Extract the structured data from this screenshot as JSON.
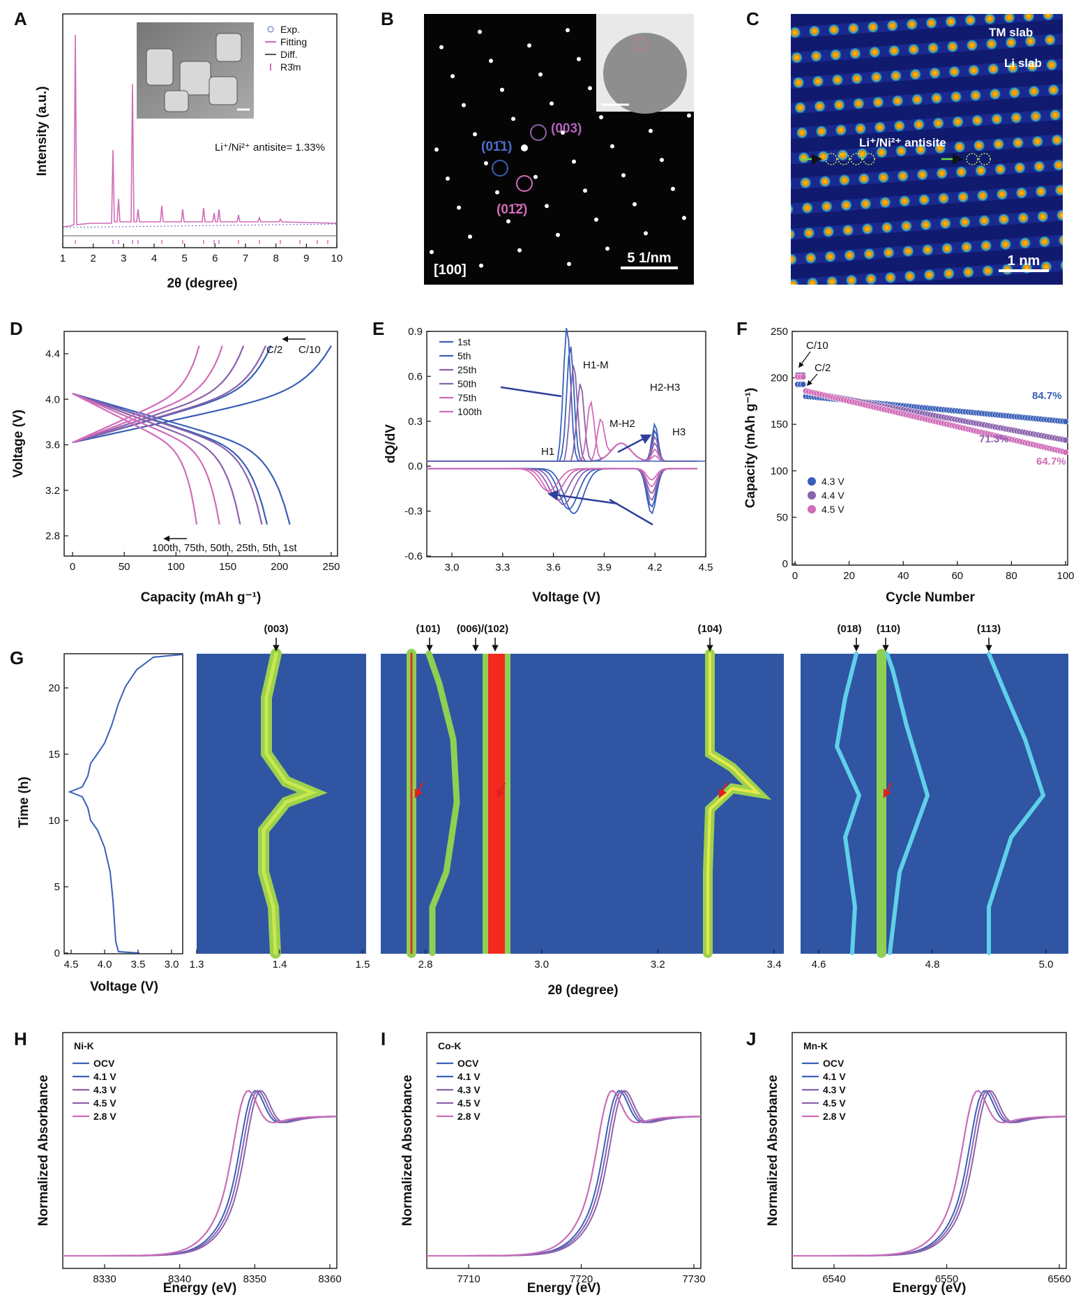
{
  "panel_letters": [
    "A",
    "B",
    "C",
    "D",
    "E",
    "F",
    "G",
    "H",
    "I",
    "J"
  ],
  "panelA": {
    "xlabel": "2θ (degree)",
    "ylabel": "Intensity (a.u.)",
    "xticks": [
      "1",
      "2",
      "3",
      "4",
      "5",
      "6",
      "7",
      "8",
      "9",
      "10"
    ],
    "legend": [
      "Exp.",
      "Fitting",
      "Diff.",
      "R3̄m"
    ],
    "annotation": "Li⁺/Ni²⁺ antisite= 1.33%"
  },
  "panelB": {
    "spots": [
      "(003)",
      "(01̄1)",
      "(01̄2̄)"
    ],
    "zone_axis": "[100]",
    "scale_label": "5 1/nm"
  },
  "panelC": {
    "labels": [
      "TM slab",
      "Li slab",
      "Li⁺/Ni²⁺ antisite"
    ],
    "scale_label": "1 nm"
  },
  "panelD": {
    "xlabel": "Capacity (mAh g⁻¹)",
    "ylabel": "Voltage (V)",
    "xticks": [
      "0",
      "50",
      "100",
      "150",
      "200",
      "250"
    ],
    "yticks": [
      "2.8",
      "3.2",
      "3.6",
      "4.0",
      "4.4"
    ],
    "rate_labels": [
      "C/2",
      "C/10"
    ],
    "cycle_label": "100th, 75th, 50th, 25th, 5th, 1st"
  },
  "panelE": {
    "xlabel": "Voltage (V)",
    "ylabel": "dQ/dV",
    "xticks": [
      "3.0",
      "3.3",
      "3.6",
      "3.9",
      "4.2",
      "4.5"
    ],
    "yticks": [
      "-0.6",
      "-0.3",
      "0.0",
      "0.3",
      "0.6",
      "0.9"
    ],
    "legend": [
      "1st",
      "5th",
      "25th",
      "50th",
      "75th",
      "100th"
    ],
    "phase_labels": [
      "H1",
      "H1-M",
      "M-H2",
      "H2-H3",
      "H3"
    ]
  },
  "panelF": {
    "xlabel": "Cycle Number",
    "ylabel": "Capacity (mAh g⁻¹)",
    "xticks": [
      "0",
      "20",
      "40",
      "60",
      "80",
      "100"
    ],
    "yticks": [
      "0",
      "50",
      "100",
      "150",
      "200",
      "250"
    ],
    "legend": [
      "4.3 V",
      "4.4 V",
      "4.5 V"
    ],
    "rate_labels": [
      "C/10",
      "C/2"
    ],
    "retention": [
      "84.7%",
      "71.3%",
      "64.7%"
    ]
  },
  "panelG": {
    "xlabel_left": "Voltage (V)",
    "ylabel": "Time (h)",
    "xlabel": "2θ (degree)",
    "voltage_ticks": [
      "4.5",
      "4.0",
      "3.5",
      "3.0"
    ],
    "time_ticks": [
      "0",
      "5",
      "10",
      "15",
      "20"
    ],
    "peaks": [
      "(003)",
      "(101)",
      "(006)/(102)",
      "(104)",
      "(018)",
      "(110)",
      "(113)"
    ],
    "map1_ticks": [
      "1.3",
      "1.4",
      "1.5"
    ],
    "map2_ticks": [
      "2.8",
      "3.0",
      "3.2",
      "3.4"
    ],
    "map3_ticks": [
      "4.6",
      "4.8",
      "5.0"
    ]
  },
  "xanes_legend": [
    "OCV",
    "4.1 V",
    "4.3 V",
    "4.5 V",
    "2.8 V"
  ],
  "xanes_ylabel": "Normalized Absorbance",
  "xanes_xlabel": "Energy (eV)",
  "panelH": {
    "edge": "Ni-K",
    "xticks": [
      "8330",
      "8340",
      "8350",
      "8360"
    ]
  },
  "panelI": {
    "edge": "Co-K",
    "xticks": [
      "7710",
      "7720",
      "7730"
    ]
  },
  "panelJ": {
    "edge": "Mn-K",
    "xticks": [
      "6540",
      "6550",
      "6560"
    ]
  },
  "chart_data": [
    {
      "type": "line",
      "panel": "D",
      "xlabel": "Capacity (mAh g⁻¹)",
      "ylabel": "Voltage (V)",
      "xlim": [
        -5,
        260
      ],
      "ylim": [
        2.7,
        4.55
      ],
      "series": [
        {
          "name": "1st",
          "discharge_capacity": 210,
          "charge_capacity": 250
        },
        {
          "name": "5th",
          "discharge_capacity": 188
        },
        {
          "name": "25th",
          "discharge_capacity": 183
        },
        {
          "name": "50th",
          "discharge_capacity": 162
        },
        {
          "name": "75th",
          "discharge_capacity": 142
        },
        {
          "name": "100th",
          "discharge_capacity": 120
        }
      ]
    },
    {
      "type": "line",
      "panel": "F",
      "xlabel": "Cycle Number",
      "ylabel": "Capacity (mAh g⁻¹)",
      "xlim": [
        0,
        100
      ],
      "ylim": [
        0,
        250
      ],
      "series": [
        {
          "name": "4.3 V",
          "start": 181,
          "end": 153,
          "retention": "84.7%"
        },
        {
          "name": "4.4 V",
          "start": 187,
          "end": 133,
          "retention": "71.3%"
        },
        {
          "name": "4.5 V",
          "start": 188,
          "end": 120,
          "retention": "64.7%"
        }
      ]
    }
  ],
  "colors": {
    "blue": "#3a5fb8",
    "purple": "#8a62ad",
    "pink": "#d06cb8",
    "arrow": "#2f3f99",
    "map_bg": "#2f55a3"
  }
}
